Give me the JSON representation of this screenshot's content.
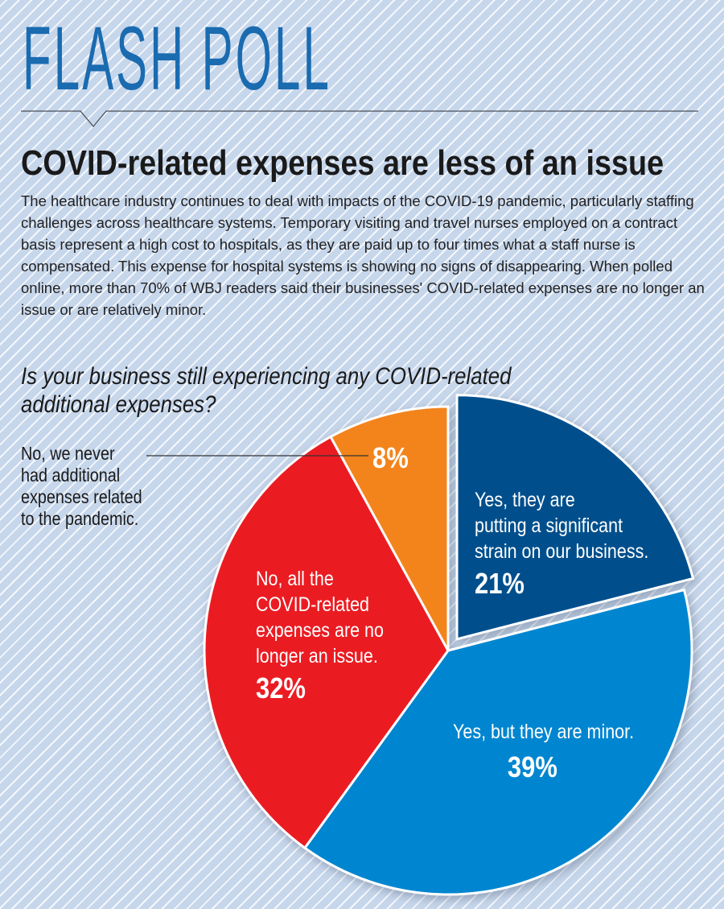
{
  "brand": "FLASH POLL",
  "headline": "COVID-related expenses are less of an issue",
  "body": "The healthcare industry continues to deal with impacts of the COVID-19 pandemic, particularly staffing challenges across healthcare systems. Temporary visiting and travel nurses employed on a contract basis represent a high cost to hospitals, as they are paid up to four times what a staff nurse is compensated. This expense for hospital systems is showing no signs of disappearing. When polled online, more than 70% of WBJ readers said their businesses' COVID-related expenses are no longer an issue or are relatively minor.",
  "chart_data": {
    "type": "pie",
    "title": "Is your business still experiencing any COVID-related additional expenses?",
    "title_lines": [
      "Is your business still experiencing any COVID-related",
      "additional expenses?"
    ],
    "slices": [
      {
        "label": "Yes, they are putting a significant strain on our business.",
        "lines": [
          "Yes, they are",
          "putting a significant",
          "strain on our business."
        ],
        "value": 21,
        "pct": "21%",
        "color": "#034f8c",
        "exploded": true
      },
      {
        "label": "Yes, but they are minor.",
        "lines": [
          "Yes, but they are minor."
        ],
        "value": 39,
        "pct": "39%",
        "color": "#0286d0"
      },
      {
        "label": "No, all the COVID-related expenses are no longer an issue.",
        "lines": [
          "No, all the",
          "COVID-related",
          "expenses are no",
          "longer an issue."
        ],
        "value": 32,
        "pct": "32%",
        "color": "#ea1c24"
      },
      {
        "label": "No, we never had additional expenses related to the pandemic.",
        "lines": [
          "No, we never",
          "had additional",
          "expenses related",
          "to the pandemic."
        ],
        "value": 8,
        "pct": "8%",
        "color": "#f3841f"
      }
    ]
  },
  "colors": {
    "brand": "#1a6bb0",
    "background": "#c6d6eb"
  }
}
